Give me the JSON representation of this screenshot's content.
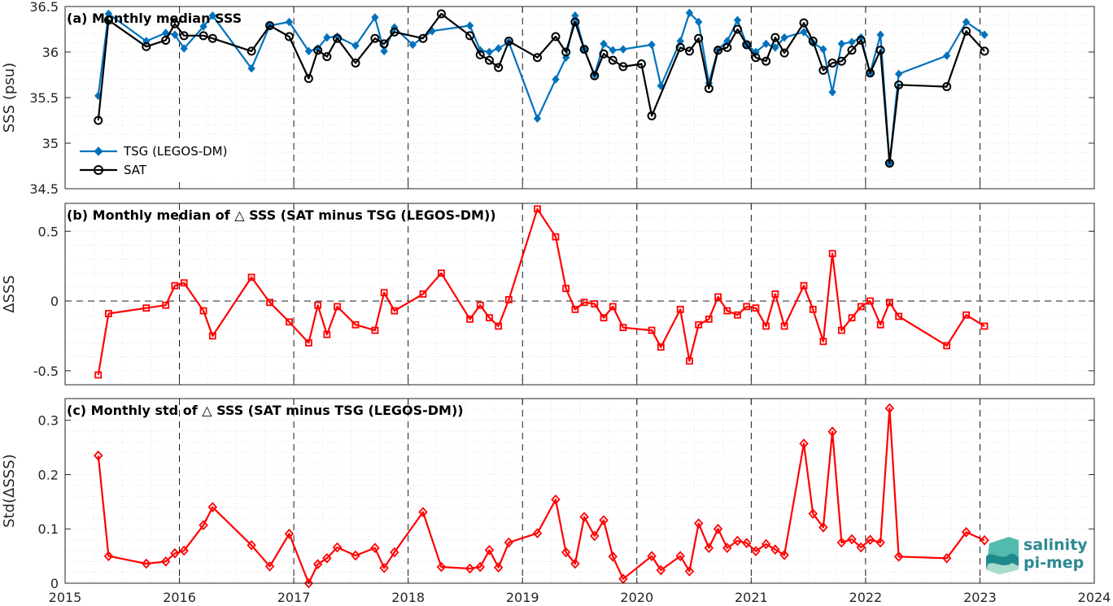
{
  "colors": {
    "tsg": "#0072bd",
    "sat": "#000000",
    "diff": "#ff0000",
    "grid": "#d9d9d9",
    "axis": "#262626",
    "logo": "#2a8a8f"
  },
  "logo": {
    "line1": "salinity",
    "line2": "pi-mep"
  },
  "chart_data": [
    {
      "type": "line",
      "title": "(a) Monthly median SSS",
      "ylabel": "SSS (psu)",
      "xlim": [
        2015,
        2024
      ],
      "ylim": [
        34.5,
        36.5
      ],
      "yticks": [
        34.5,
        35,
        35.5,
        36,
        36.5
      ],
      "ytick_labels": [
        "34.5",
        "35",
        "35.5",
        "36",
        "36.5"
      ],
      "legend_position": "lower-left",
      "series": [
        {
          "name": "TSG (LEGOS-DM)",
          "marker": "diamond",
          "x": [
            2015.29,
            2015.38,
            2015.71,
            2015.88,
            2015.96,
            2016.04,
            2016.21,
            2016.29,
            2016.63,
            2016.79,
            2016.96,
            2017.13,
            2017.21,
            2017.29,
            2017.38,
            2017.54,
            2017.71,
            2017.79,
            2017.88,
            2018.04,
            2018.21,
            2018.54,
            2018.63,
            2018.71,
            2018.79,
            2018.88,
            2019.13,
            2019.29,
            2019.38,
            2019.46,
            2019.54,
            2019.63,
            2019.71,
            2019.79,
            2019.88,
            2020.13,
            2020.21,
            2020.38,
            2020.46,
            2020.54,
            2020.63,
            2020.71,
            2020.79,
            2020.88,
            2020.96,
            2021.04,
            2021.13,
            2021.21,
            2021.29,
            2021.46,
            2021.54,
            2021.63,
            2021.71,
            2021.79,
            2021.88,
            2021.96,
            2022.04,
            2022.13,
            2022.21,
            2022.29,
            2022.71,
            2022.88,
            2023.04
          ],
          "values": [
            35.52,
            36.42,
            36.12,
            36.21,
            36.19,
            36.04,
            36.28,
            36.4,
            35.82,
            36.29,
            36.33,
            36.01,
            36.04,
            36.16,
            36.17,
            36.07,
            36.38,
            36.01,
            36.27,
            36.08,
            36.23,
            36.29,
            36.02,
            36.0,
            36.04,
            36.11,
            35.27,
            35.7,
            35.94,
            36.4,
            36.03,
            35.75,
            36.09,
            36.02,
            36.03,
            36.08,
            35.63,
            36.12,
            36.43,
            36.33,
            35.66,
            36.03,
            36.12,
            36.35,
            36.08,
            36.0,
            36.09,
            36.05,
            36.16,
            36.22,
            36.1,
            36.03,
            35.56,
            36.09,
            36.11,
            36.16,
            35.77,
            36.19,
            34.78,
            35.76,
            35.96,
            36.33,
            36.19
          ]
        },
        {
          "name": "SAT",
          "marker": "circle",
          "x": [
            2015.29,
            2015.38,
            2015.71,
            2015.88,
            2015.96,
            2016.04,
            2016.21,
            2016.29,
            2016.63,
            2016.79,
            2016.96,
            2017.13,
            2017.21,
            2017.29,
            2017.38,
            2017.54,
            2017.71,
            2017.79,
            2017.88,
            2018.13,
            2018.29,
            2018.54,
            2018.63,
            2018.71,
            2018.79,
            2018.88,
            2019.13,
            2019.29,
            2019.38,
            2019.46,
            2019.54,
            2019.63,
            2019.71,
            2019.79,
            2019.88,
            2020.04,
            2020.13,
            2020.38,
            2020.46,
            2020.54,
            2020.63,
            2020.71,
            2020.79,
            2020.88,
            2020.96,
            2021.04,
            2021.13,
            2021.21,
            2021.29,
            2021.46,
            2021.54,
            2021.63,
            2021.71,
            2021.79,
            2021.88,
            2021.96,
            2022.04,
            2022.13,
            2022.21,
            2022.29,
            2022.71,
            2022.88,
            2023.04
          ],
          "values": [
            35.25,
            36.35,
            36.06,
            36.13,
            36.31,
            36.18,
            36.18,
            36.15,
            36.01,
            36.29,
            36.17,
            35.71,
            36.02,
            35.95,
            36.15,
            35.88,
            36.15,
            36.09,
            36.22,
            36.15,
            36.42,
            36.18,
            35.97,
            35.91,
            35.83,
            36.12,
            35.94,
            36.17,
            36.0,
            36.33,
            36.03,
            35.74,
            35.98,
            35.91,
            35.84,
            35.87,
            35.3,
            36.05,
            36.01,
            36.15,
            35.6,
            36.02,
            36.05,
            36.25,
            36.08,
            35.94,
            35.9,
            36.16,
            35.99,
            36.32,
            36.12,
            35.8,
            35.88,
            35.9,
            36.02,
            36.13,
            35.77,
            36.02,
            34.78,
            35.64,
            35.62,
            36.23,
            36.01
          ]
        }
      ]
    },
    {
      "type": "line",
      "title": "(b) Monthly median of △ SSS (SAT minus TSG (LEGOS-DM))",
      "ylabel": "ΔSSS",
      "xlim": [
        2015,
        2024
      ],
      "ylim": [
        -0.6,
        0.7
      ],
      "yticks": [
        -0.5,
        0,
        0.5
      ],
      "ytick_labels": [
        "-0.5",
        "0",
        "0.5"
      ],
      "zero_line": true,
      "series": [
        {
          "name": "",
          "marker": "square",
          "x": [
            2015.29,
            2015.38,
            2015.71,
            2015.88,
            2015.96,
            2016.04,
            2016.21,
            2016.29,
            2016.63,
            2016.79,
            2016.96,
            2017.13,
            2017.21,
            2017.29,
            2017.38,
            2017.54,
            2017.71,
            2017.79,
            2017.88,
            2018.13,
            2018.29,
            2018.54,
            2018.63,
            2018.71,
            2018.79,
            2018.88,
            2019.13,
            2019.29,
            2019.38,
            2019.46,
            2019.54,
            2019.63,
            2019.71,
            2019.79,
            2019.88,
            2020.13,
            2020.21,
            2020.38,
            2020.46,
            2020.54,
            2020.63,
            2020.71,
            2020.79,
            2020.88,
            2020.96,
            2021.04,
            2021.13,
            2021.21,
            2021.29,
            2021.46,
            2021.54,
            2021.63,
            2021.71,
            2021.79,
            2021.88,
            2021.96,
            2022.04,
            2022.13,
            2022.21,
            2022.29,
            2022.71,
            2022.88,
            2023.04
          ],
          "values": [
            -0.53,
            -0.09,
            -0.05,
            -0.03,
            0.11,
            0.13,
            -0.07,
            -0.25,
            0.17,
            -0.01,
            -0.15,
            -0.3,
            -0.03,
            -0.24,
            -0.04,
            -0.17,
            -0.21,
            0.06,
            -0.07,
            0.05,
            0.2,
            -0.13,
            -0.03,
            -0.12,
            -0.18,
            0.01,
            0.66,
            0.46,
            0.09,
            -0.06,
            -0.01,
            -0.02,
            -0.12,
            -0.04,
            -0.19,
            -0.21,
            -0.33,
            -0.06,
            -0.43,
            -0.17,
            -0.13,
            0.03,
            -0.07,
            -0.1,
            -0.04,
            -0.05,
            -0.18,
            0.05,
            -0.18,
            0.11,
            -0.06,
            -0.29,
            0.34,
            -0.21,
            -0.12,
            -0.04,
            0.0,
            -0.17,
            -0.01,
            -0.11,
            -0.32,
            -0.1,
            -0.18
          ]
        }
      ]
    },
    {
      "type": "line",
      "title": "(c) Monthly std of △ SSS (SAT minus TSG (LEGOS-DM))",
      "ylabel": "Std(ΔSSS)",
      "xlim": [
        2015,
        2024
      ],
      "ylim": [
        0,
        0.34
      ],
      "yticks": [
        0,
        0.1,
        0.2,
        0.3
      ],
      "ytick_labels": [
        "0",
        "0.1",
        "0.2",
        "0.3"
      ],
      "xticks": [
        2015,
        2016,
        2017,
        2018,
        2019,
        2020,
        2021,
        2022,
        2023,
        2024
      ],
      "xtick_labels": [
        "2015",
        "2016",
        "2017",
        "2018",
        "2019",
        "2020",
        "2021",
        "2022",
        "2023",
        "2024"
      ],
      "series": [
        {
          "name": "",
          "marker": "diamond",
          "x": [
            2015.29,
            2015.38,
            2015.71,
            2015.88,
            2015.96,
            2016.04,
            2016.21,
            2016.29,
            2016.63,
            2016.79,
            2016.96,
            2017.13,
            2017.21,
            2017.29,
            2017.38,
            2017.54,
            2017.71,
            2017.79,
            2017.88,
            2018.13,
            2018.29,
            2018.54,
            2018.63,
            2018.71,
            2018.79,
            2018.88,
            2019.13,
            2019.29,
            2019.38,
            2019.46,
            2019.54,
            2019.63,
            2019.71,
            2019.79,
            2019.88,
            2020.13,
            2020.21,
            2020.38,
            2020.46,
            2020.54,
            2020.63,
            2020.71,
            2020.79,
            2020.88,
            2020.96,
            2021.04,
            2021.13,
            2021.21,
            2021.29,
            2021.46,
            2021.54,
            2021.63,
            2021.71,
            2021.79,
            2021.88,
            2021.96,
            2022.04,
            2022.13,
            2022.21,
            2022.29,
            2022.71,
            2022.88,
            2023.04
          ],
          "values": [
            0.235,
            0.05,
            0.036,
            0.04,
            0.055,
            0.06,
            0.107,
            0.14,
            0.07,
            0.031,
            0.091,
            0.0,
            0.035,
            0.046,
            0.066,
            0.051,
            0.065,
            0.028,
            0.057,
            0.131,
            0.03,
            0.027,
            0.03,
            0.061,
            0.029,
            0.075,
            0.092,
            0.154,
            0.057,
            0.036,
            0.122,
            0.087,
            0.116,
            0.049,
            0.008,
            0.05,
            0.024,
            0.05,
            0.022,
            0.11,
            0.065,
            0.1,
            0.065,
            0.078,
            0.074,
            0.059,
            0.072,
            0.062,
            0.052,
            0.257,
            0.128,
            0.103,
            0.279,
            0.075,
            0.081,
            0.066,
            0.08,
            0.075,
            0.322,
            0.049,
            0.046,
            0.094,
            0.079
          ]
        }
      ]
    }
  ]
}
